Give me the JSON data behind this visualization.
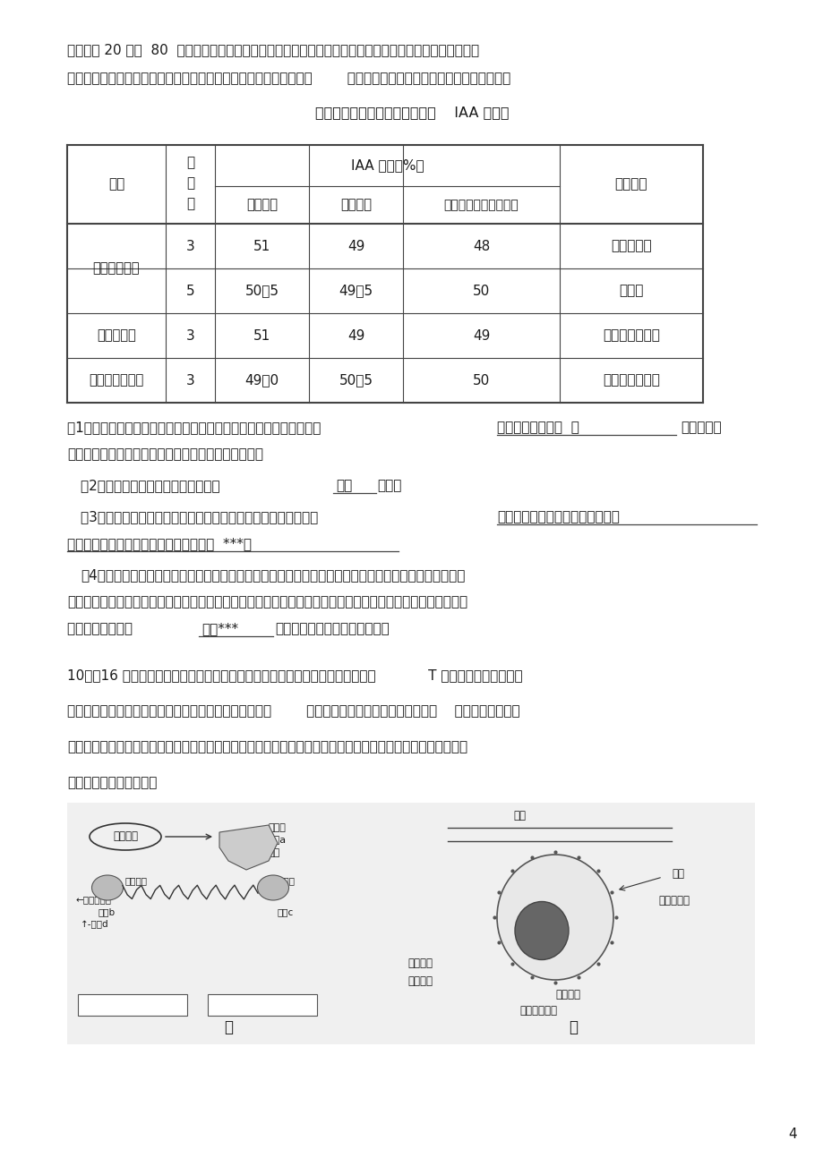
{
  "bg_color": "#ffffff",
  "text_color": "#1a1a1a",
  "page_number": "4",
  "mat2_l1": "材料二： 20 世纪  80  年代以来，有学者利用气相质谱仪等现代物理化学法分别测得向日葵下胚轴、萝卜下",
  "mat2_l2": "胚轴（下胚轴是指双子叶植物幼苗的子叶着生处以下最初茎的部分）        和黄化燕麦胚芽鞘的生长素分布如下表所示。",
  "table_title": "向日葵、萝卜和燕麦向光器官的    IAA 分布表",
  "table_rows": [
    [
      "向日葵下胚轴",
      "3",
      "51",
      "49",
      "48",
      "分子荧光法"
    ],
    [
      "",
      "5",
      "50．5",
      "49．5",
      "50",
      "免疫法"
    ],
    [
      "萝卜下胚轴",
      "3",
      "51",
      "49",
      "49",
      "电子俘获检测法"
    ],
    [
      "黄化燕麦胚芽鞘",
      "3",
      "49．0",
      "50．5",
      "50",
      "电子俘获检测法"
    ]
  ],
  "q1a": "（1）材料一的实验结果说明，受到单侧光照射后生长素的转移方向为           ",
  "q1b": "向光侧移向背光侧  ，",
  "q1c": "由于生长素",
  "q1d": "具有促进植物生长的作用，所以胚芽鞘向光弯曲生长。",
  "q2a": "（2）材料二中的黑暗处理在实验中起       ",
  "q2b": "对照",
  "q2c": "作用。",
  "q3a": "（3）材料二的实验结果是否支持材料一的观点，并请说明理由：           ",
  "q3b": "不支持，用现代物理化学方法测得",
  "q3c": "向光侧和背光侧的生长素含量无明显差异  ***。",
  "q4a": "（4）人们用同样的研究方法还分别测得了萝卜下胚轴中的萝卜宁、向日葵下胚轴中的黄质醌等物质，发现",
  "q4b": "这些物质的含量是向光侧多于背光侧。结合材料二的实验结果，对植物向光性的可以这样解释：萝卜宁、黄质醌",
  "q4c": "等物质可能是生长  ",
  "q4d": "抑制***",
  "q4e": "剂，从而影响了向光侧的生长。",
  "q10a": "10．（16 分）科学研究表明：长期的精神因素（焦虑、紧张等的心理应激）会使            T 细胞的活性下降，对病",
  "q10b": "毒和真菌感染的抵抗以及对肿瘤细胞的监控能力均降低，        同时还间接影响机体对抗体的产生。    甲图为人体产生情",
  "q10c": "绪压力时肾上腺皮质、肾上腺髓质受下丘脑调节的模式图，乙图是神经、激素、免疫三大调节的相互作用图。请",
  "q10d": "据图分析回答下列问题："
}
